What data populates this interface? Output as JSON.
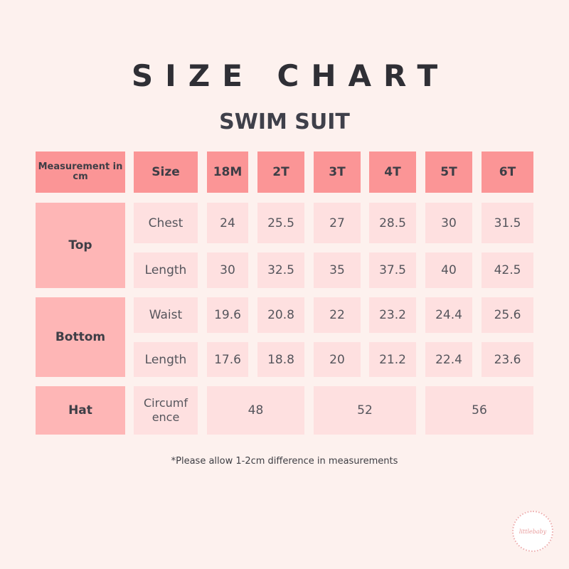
{
  "title": "SIZE CHART",
  "subtitle": "SWIM SUIT",
  "table": {
    "corner": "Measurement in cm",
    "size_label": "Size",
    "sizes": [
      "18M",
      "2T",
      "3T",
      "4T",
      "5T",
      "6T"
    ],
    "groups": [
      {
        "name": "Top",
        "rows": [
          {
            "label": "Chest",
            "values": [
              "24",
              "25.5",
              "27",
              "28.5",
              "30",
              "31.5"
            ]
          },
          {
            "label": "Length",
            "values": [
              "30",
              "32.5",
              "35",
              "37.5",
              "40",
              "42.5"
            ]
          }
        ]
      },
      {
        "name": "Bottom",
        "rows": [
          {
            "label": "Waist",
            "values": [
              "19.6",
              "20.8",
              "22",
              "23.2",
              "24.4",
              "25.6"
            ]
          },
          {
            "label": "Length",
            "values": [
              "17.6",
              "18.8",
              "20",
              "21.2",
              "22.4",
              "23.6"
            ]
          }
        ]
      },
      {
        "name": "Hat",
        "rows": [
          {
            "label": "Circumf ence",
            "values": [
              "48",
              "52",
              "56"
            ]
          }
        ]
      }
    ]
  },
  "note": "*Please allow 1-2cm difference in measurements",
  "logo": {
    "text": "littlebaby",
    "colors": {
      "border": "#f0b7b7",
      "text": "#e89b9b"
    }
  },
  "colors": {
    "background": "#fdf1ee",
    "header": "#fb9596",
    "group": "#feb6b6",
    "cell": "#fee0e0"
  }
}
